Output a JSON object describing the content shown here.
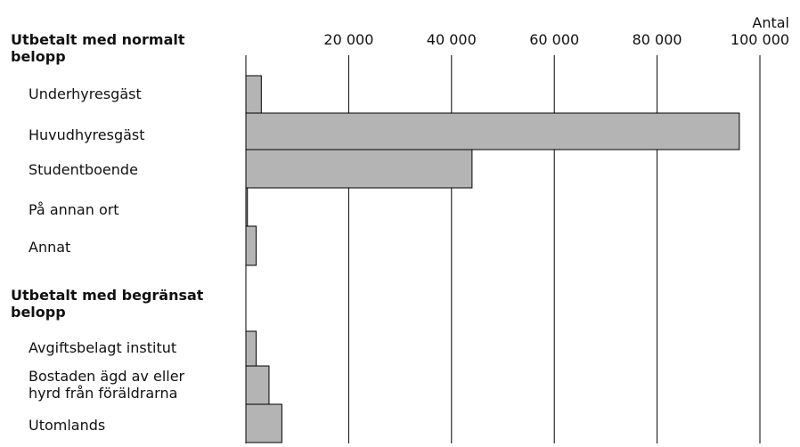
{
  "chart_data": {
    "type": "bar",
    "orientation": "horizontal",
    "unit_label": "Antal",
    "xlim": [
      0,
      100000
    ],
    "ticks": [
      "20 000",
      "40 000",
      "60 000",
      "80 000",
      "100 000"
    ],
    "grid": true,
    "groups": [
      {
        "label": "Utbetalt med normalt belopp",
        "categories": [
          "Underhyresgäst",
          "Huvudhyresgäst",
          "Studentboende",
          "På annan ort",
          "Annat"
        ],
        "values": [
          3000,
          96000,
          44000,
          300,
          2000
        ]
      },
      {
        "label": "Utbetalt med begränsat belopp",
        "categories": [
          "Avgiftsbelagt institut",
          "Bostaden ägd av eller hyrd från föräldrarna",
          "Utomlands"
        ],
        "values": [
          2000,
          4500,
          7000
        ]
      }
    ],
    "colors": {
      "bar_fill": "#b4b4b4",
      "bar_stroke": "#000000",
      "grid": "#000000"
    }
  }
}
